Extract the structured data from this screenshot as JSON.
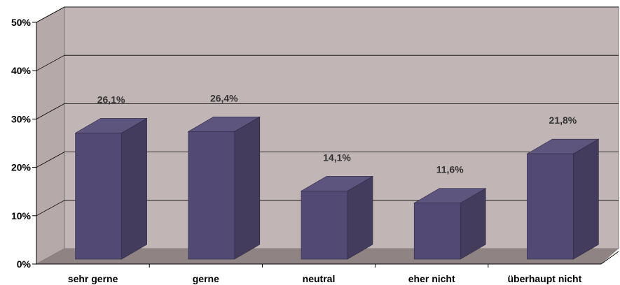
{
  "chart_data": {
    "type": "bar",
    "style": "3d-column",
    "categories": [
      "sehr gerne",
      "gerne",
      "neutral",
      "eher nicht",
      "überhaupt nicht"
    ],
    "values": [
      26.1,
      26.4,
      14.1,
      11.6,
      21.8
    ],
    "data_labels": [
      "26,1%",
      "26,4%",
      "14,1%",
      "11,6%",
      "21,8%"
    ],
    "ylim": [
      0,
      50
    ],
    "yticks": [
      0,
      10,
      20,
      30,
      40,
      50
    ],
    "ytick_labels": [
      "0%",
      "10%",
      "20%",
      "30%",
      "40%",
      "50%"
    ],
    "grid": true,
    "legend": "none",
    "colors": {
      "bar_front": "#524a74",
      "bar_side": "#433c5c",
      "bar_top": "#5e557f",
      "back_wall": "#c2b5b5",
      "side_wall": "#b6a9a9",
      "floor": "#8f8383",
      "grid": "#000000"
    }
  }
}
